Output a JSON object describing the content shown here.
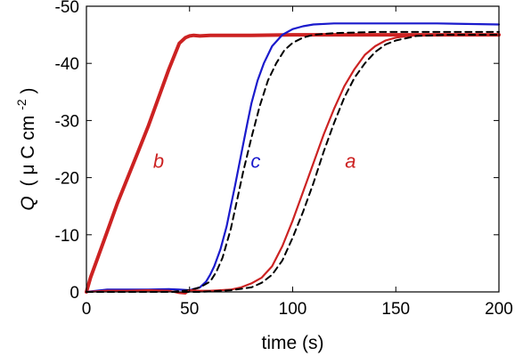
{
  "chart_data": {
    "type": "line",
    "xlabel": "time (s)",
    "ylabel_main": "Q",
    "ylabel_unit_open": "(",
    "ylabel_unit_mu": "μ",
    "ylabel_unit_c": "C cm",
    "ylabel_unit_exp": "-2",
    "ylabel_unit_close": ")",
    "xlim": [
      0,
      200
    ],
    "ylim": [
      0,
      -50
    ],
    "x_ticks": [
      0,
      50,
      100,
      150,
      200
    ],
    "x_tick_labels": [
      "0",
      "50",
      "100",
      "150",
      "200"
    ],
    "y_ticks": [
      0,
      -10,
      -20,
      -30,
      -40,
      -50
    ],
    "y_tick_labels": [
      "0",
      "-10",
      "-20",
      "-30",
      "-40",
      "-50"
    ],
    "grid": false,
    "colors": {
      "red": "#cc2222",
      "blue": "#1a1acc",
      "dashed": "#000000"
    },
    "series": [
      {
        "name": "b",
        "color": "#cc2222",
        "style": "solid-thick",
        "label_at": [
          35,
          -23
        ],
        "x": [
          0,
          2,
          5,
          10,
          15,
          20,
          25,
          30,
          35,
          40,
          45,
          48,
          50,
          52,
          55,
          60,
          80,
          100,
          120,
          150,
          180,
          200
        ],
        "y": [
          0,
          -2.5,
          -5.5,
          -10.5,
          -15.5,
          -20,
          -24.5,
          -29,
          -34,
          -39,
          -43.5,
          -44.5,
          -44.8,
          -44.9,
          -44.8,
          -44.9,
          -44.9,
          -45,
          -45,
          -45,
          -45,
          -45
        ]
      },
      {
        "name": "c",
        "color": "#1a1acc",
        "style": "solid",
        "label_at": [
          82,
          -23
        ],
        "x": [
          0,
          10,
          20,
          30,
          40,
          45,
          50,
          55,
          58,
          60,
          62,
          65,
          68,
          70,
          72,
          75,
          78,
          80,
          83,
          86,
          90,
          95,
          100,
          105,
          110,
          120,
          130,
          150,
          170,
          200
        ],
        "y": [
          0,
          -0.4,
          -0.4,
          -0.4,
          -0.5,
          -0.4,
          -0.3,
          -0.8,
          -1.8,
          -3,
          -4.5,
          -7.5,
          -11.5,
          -15,
          -18.5,
          -24,
          -29.5,
          -33,
          -37,
          -40,
          -43,
          -45,
          -46,
          -46.5,
          -46.8,
          -47,
          -47,
          -47,
          -47,
          -46.8
        ]
      },
      {
        "name": "c-fit",
        "color": "#000000",
        "style": "dashed",
        "x": [
          0,
          20,
          40,
          50,
          55,
          60,
          63,
          66,
          70,
          73,
          76,
          80,
          84,
          88,
          92,
          96,
          100,
          105,
          110,
          120,
          140,
          170,
          200
        ],
        "y": [
          0,
          0,
          0,
          -0.3,
          -0.8,
          -1.8,
          -3.5,
          -6,
          -11,
          -16,
          -21,
          -27,
          -32.5,
          -37,
          -40,
          -42.3,
          -43.6,
          -44.5,
          -45,
          -45.3,
          -45.5,
          -45.5,
          -45.5
        ]
      },
      {
        "name": "a",
        "color": "#cc2222",
        "style": "solid",
        "label_at": [
          128,
          -23
        ],
        "x": [
          0,
          10,
          20,
          30,
          40,
          45,
          48,
          50,
          55,
          60,
          65,
          70,
          75,
          80,
          85,
          90,
          95,
          100,
          105,
          110,
          115,
          120,
          125,
          130,
          135,
          140,
          145,
          150,
          160,
          170,
          180,
          200
        ],
        "y": [
          0,
          -0.2,
          -0.2,
          -0.3,
          -0.2,
          0.2,
          0.3,
          -0.3,
          -0.2,
          -0.2,
          -0.3,
          -0.4,
          -0.8,
          -1.5,
          -2.5,
          -4.5,
          -8,
          -12.5,
          -17.5,
          -22.5,
          -27.5,
          -32,
          -36,
          -39,
          -41.5,
          -43,
          -44,
          -44.5,
          -45,
          -45,
          -45,
          -45
        ]
      },
      {
        "name": "a-fit",
        "color": "#000000",
        "style": "dashed",
        "x": [
          0,
          20,
          40,
          55,
          60,
          70,
          80,
          85,
          90,
          95,
          100,
          105,
          110,
          115,
          120,
          125,
          130,
          135,
          140,
          145,
          150,
          160,
          175,
          200
        ],
        "y": [
          0,
          0,
          0,
          0,
          -0.1,
          -0.3,
          -0.8,
          -1.6,
          -3,
          -5.5,
          -9.5,
          -14,
          -19,
          -24.5,
          -29.5,
          -34,
          -37.5,
          -40,
          -42,
          -43.3,
          -44,
          -44.8,
          -45,
          -45
        ]
      }
    ]
  }
}
